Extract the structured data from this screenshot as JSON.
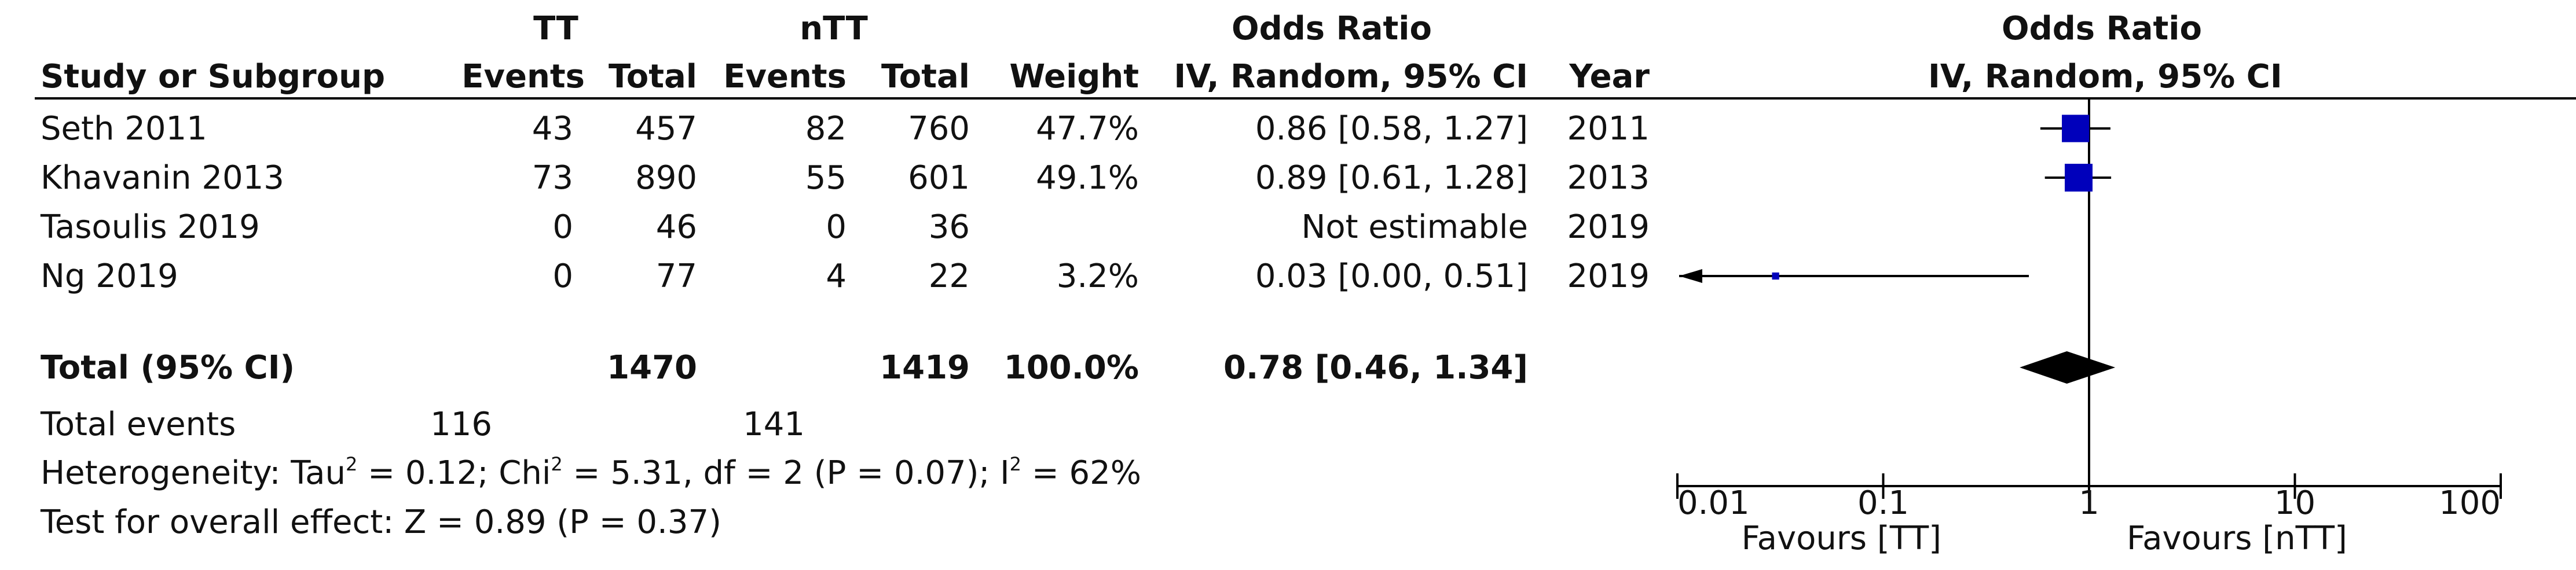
{
  "header": {
    "group1": "TT",
    "group2": "nTT",
    "or_title": "Odds Ratio",
    "study_col": "Study or Subgroup",
    "events1": "Events",
    "total1": "Total",
    "events2": "Events",
    "total2": "Total",
    "weight": "Weight",
    "method": "IV, Random, 95% CI",
    "year": "Year",
    "plot_title": "Odds Ratio",
    "plot_method": "IV, Random, 95% CI"
  },
  "studies": [
    {
      "name": "Seth 2011",
      "events1": "43",
      "total1": "457",
      "events2": "82",
      "total2": "760",
      "weight": "47.7%",
      "ci": "0.86 [0.58, 1.27]",
      "year": "2011"
    },
    {
      "name": "Khavanin 2013",
      "events1": "73",
      "total1": "890",
      "events2": "55",
      "total2": "601",
      "weight": "49.1%",
      "ci": "0.89 [0.61, 1.28]",
      "year": "2013"
    },
    {
      "name": "Tasoulis 2019",
      "events1": "0",
      "total1": "46",
      "events2": "0",
      "total2": "36",
      "weight": "",
      "ci": "Not estimable",
      "year": "2019"
    },
    {
      "name": "Ng 2019",
      "events1": "0",
      "total1": "77",
      "events2": "4",
      "total2": "22",
      "weight": "3.2%",
      "ci": "0.03 [0.00, 0.51]",
      "year": "2019"
    }
  ],
  "total": {
    "label": "Total (95% CI)",
    "total1": "1470",
    "total2": "1419",
    "weight": "100.0%",
    "ci": "0.78 [0.46, 1.34]"
  },
  "events_row": {
    "label": "Total events",
    "events1": "116",
    "events2": "141"
  },
  "heterogeneity": {
    "prefix": "Heterogeneity: Tau",
    "tau2": "0.12",
    "chi_prefix": "Chi",
    "chi2": "5.31",
    "df": "2",
    "p": "0.07",
    "i_prefix": "I",
    "i2": "62%"
  },
  "overall": "Test for overall effect: Z = 0.89 (P = 0.37)",
  "axis": {
    "ticks": [
      "0.01",
      "0.1",
      "1",
      "10",
      "100"
    ],
    "favours_left": "Favours [TT]",
    "favours_right": "Favours [nTT]"
  },
  "chart_data": {
    "type": "forest",
    "x_scale": "log",
    "xlim": [
      0.01,
      100
    ],
    "studies": [
      {
        "name": "Seth 2011",
        "or": 0.86,
        "lower": 0.58,
        "upper": 1.27,
        "weight": 47.7
      },
      {
        "name": "Khavanin 2013",
        "or": 0.89,
        "lower": 0.61,
        "upper": 1.28,
        "weight": 49.1
      },
      {
        "name": "Tasoulis 2019",
        "or": null,
        "lower": null,
        "upper": null,
        "weight": null
      },
      {
        "name": "Ng 2019",
        "or": 0.03,
        "lower": 0.0,
        "upper": 0.51,
        "weight": 3.2
      }
    ],
    "pooled": {
      "or": 0.78,
      "lower": 0.46,
      "upper": 1.34
    },
    "colors": {
      "marker": "#0000bb",
      "diamond": "#000000",
      "lines": "#000000"
    }
  }
}
